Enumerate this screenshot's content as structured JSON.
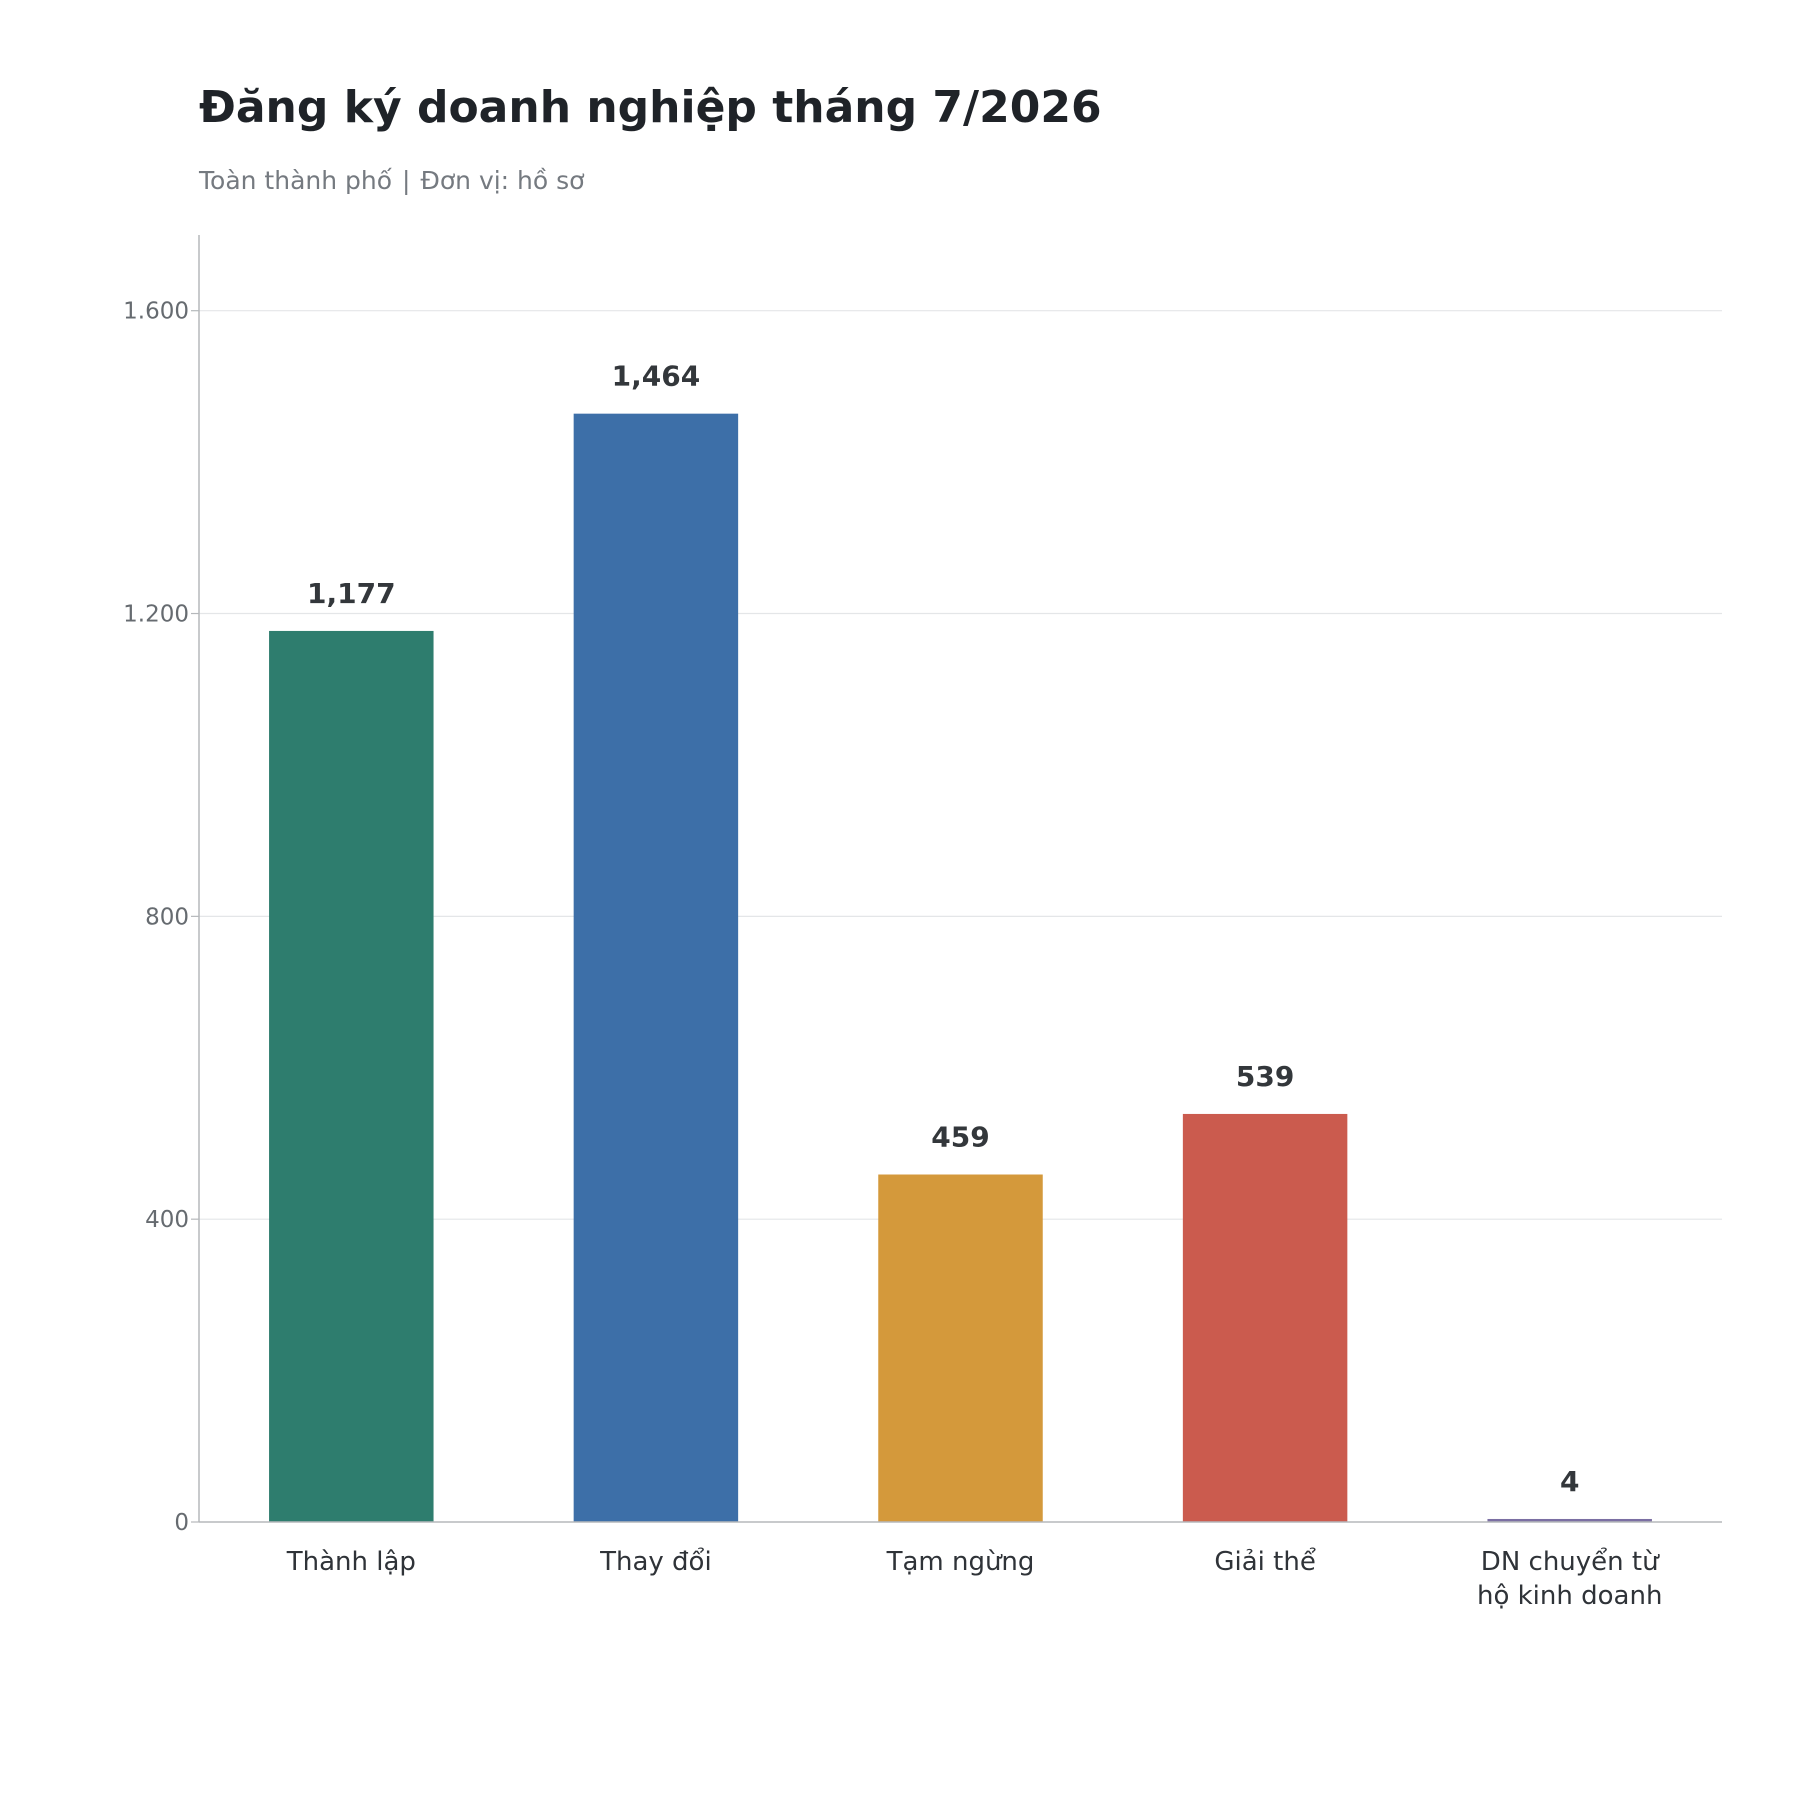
{
  "header": {
    "title": "Đăng ký doanh nghiệp tháng 7/2026",
    "subtitle_scope": "Toàn thành phố",
    "subtitle_separator": "|",
    "subtitle_unit": "Đơn vị: hồ sơ"
  },
  "chart_data": {
    "type": "bar",
    "title": "Đăng ký doanh nghiệp tháng 7/2026",
    "xlabel": "",
    "ylabel": "",
    "ylim": [
      0,
      1700
    ],
    "yticks": [
      0,
      400,
      800,
      1200,
      1600
    ],
    "ytick_labels": [
      "0",
      "400",
      "800",
      "1.200",
      "1.600"
    ],
    "grid": true,
    "legend": "none",
    "categories": [
      [
        "Thành lập"
      ],
      [
        "Thay đổi"
      ],
      [
        "Tạm ngừng"
      ],
      [
        "Giải thể"
      ],
      [
        "DN chuyển từ",
        "hộ kinh doanh"
      ]
    ],
    "values": [
      1177,
      1464,
      459,
      539,
      4
    ],
    "value_labels": [
      "1,177",
      "1,464",
      "459",
      "539",
      "4"
    ],
    "colors": [
      "#2e7d6e",
      "#3d6fa8",
      "#d4993b",
      "#cb5b4e",
      "#7b6fa3"
    ]
  }
}
